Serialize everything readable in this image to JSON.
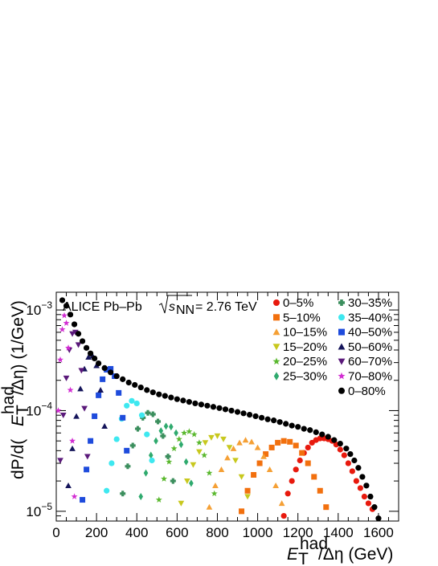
{
  "chart_data": {
    "type": "scatter",
    "annotation": {
      "prefix": "ALICE Pb–Pb",
      "sqrt_base": "s",
      "sqrt_sub": "NN",
      "suffix": "= 2.76 TeV"
    },
    "xlabel": {
      "base": "E",
      "sub": "T",
      "sup": "had",
      "rest": "/Δη (GeV)"
    },
    "ylabel": {
      "prefix": "dP/d(",
      "base": "E",
      "sub": "T",
      "sup": "had",
      "rest": "/Δη) (1/GeV)"
    },
    "xlim": [
      0,
      1700
    ],
    "ylim": [
      8e-06,
      0.0015
    ],
    "yscale": "log",
    "x_ticks": [
      "0",
      "200",
      "400",
      "600",
      "800",
      "1000",
      "1200",
      "1400",
      "1600"
    ],
    "y_ticks": [
      {
        "base": "10",
        "exp": "−3"
      },
      {
        "base": "10",
        "exp": "−4"
      },
      {
        "base": "10",
        "exp": "−5"
      }
    ],
    "legend_position": "top-right",
    "series": [
      {
        "name": "0–5%",
        "color": "#e8190d",
        "marker": "circle",
        "x": [
          1130,
          1150,
          1170,
          1190,
          1210,
          1230,
          1250,
          1270,
          1290,
          1310,
          1330,
          1350,
          1370,
          1390,
          1410,
          1430,
          1450,
          1470,
          1490,
          1510,
          1530,
          1550,
          1570
        ],
        "y": [
          9e-06,
          1.5e-05,
          2e-05,
          2.6e-05,
          3.2e-05,
          3.8e-05,
          4.3e-05,
          4.8e-05,
          5.1e-05,
          5.3e-05,
          5.3e-05,
          5.2e-05,
          5e-05,
          4.6e-05,
          4.1e-05,
          3.6e-05,
          3e-05,
          2.5e-05,
          2e-05,
          1.7e-05,
          1.4e-05,
          1.2e-05,
          1.05e-05
        ]
      },
      {
        "name": "5–10%",
        "color": "#f2700e",
        "marker": "square",
        "x": [
          920,
          950,
          980,
          1010,
          1040,
          1070,
          1100,
          1130,
          1160,
          1190,
          1220,
          1250,
          1280,
          1310,
          1340
        ],
        "y": [
          1e-05,
          1.6e-05,
          2.3e-05,
          3e-05,
          3.7e-05,
          4.3e-05,
          4.8e-05,
          5e-05,
          4.9e-05,
          4.5e-05,
          3.8e-05,
          3e-05,
          2.2e-05,
          1.6e-05,
          1.1e-05
        ]
      },
      {
        "name": "10–15%",
        "color": "#f5a035",
        "marker": "triangle-up",
        "x": [
          760,
          790,
          820,
          850,
          880,
          910,
          940,
          970,
          1000,
          1030,
          1060,
          1090,
          1120
        ],
        "y": [
          1.1e-05,
          1.8e-05,
          2.6e-05,
          3.4e-05,
          4.2e-05,
          4.8e-05,
          5.1e-05,
          4.9e-05,
          4.3e-05,
          3.5e-05,
          2.6e-05,
          1.8e-05,
          1.2e-05
        ]
      },
      {
        "name": "15–20%",
        "color": "#c8c81e",
        "marker": "triangle-down",
        "x": [
          620,
          650,
          680,
          710,
          740,
          770,
          800,
          830,
          860,
          890,
          920,
          950
        ],
        "y": [
          1.2e-05,
          2e-05,
          2.9e-05,
          3.9e-05,
          4.8e-05,
          5.4e-05,
          5.6e-05,
          5.2e-05,
          4.3e-05,
          3.2e-05,
          2.2e-05,
          1.4e-05
        ]
      },
      {
        "name": "20–25%",
        "color": "#5ab82e",
        "marker": "star",
        "x": [
          510,
          535,
          560,
          585,
          610,
          635,
          660,
          685,
          710,
          735,
          760,
          785
        ],
        "y": [
          1.3e-05,
          2.1e-05,
          3.1e-05,
          4.2e-05,
          5.2e-05,
          6e-05,
          6.2e-05,
          5.8e-05,
          4.8e-05,
          3.6e-05,
          2.4e-05,
          1.5e-05
        ]
      },
      {
        "name": "25–30%",
        "color": "#2faa6e",
        "marker": "diamond",
        "x": [
          420,
          445,
          470,
          495,
          520,
          545,
          570,
          595,
          620,
          645,
          670
        ],
        "y": [
          1.4e-05,
          2.4e-05,
          3.6e-05,
          5e-05,
          6.3e-05,
          7e-05,
          6.9e-05,
          6e-05,
          4.6e-05,
          3.1e-05,
          1.9e-05
        ]
      },
      {
        "name": "30–35%",
        "color": "#3c8f5e",
        "marker": "cross",
        "x": [
          330,
          355,
          380,
          405,
          430,
          455,
          480,
          505,
          530,
          555,
          580
        ],
        "y": [
          1.5e-05,
          2.8e-05,
          4.5e-05,
          6.6e-05,
          8.5e-05,
          9.5e-05,
          9.2e-05,
          7.8e-05,
          5.6e-05,
          3.5e-05,
          2e-05
        ]
      },
      {
        "name": "35–40%",
        "color": "#3ee8f0",
        "marker": "circle",
        "x": [
          250,
          275,
          300,
          325,
          350,
          375,
          400,
          425,
          450,
          475
        ],
        "y": [
          1.6e-05,
          3e-05,
          5.2e-05,
          8.3e-05,
          0.000112,
          0.000125,
          0.000118,
          9e-05,
          5.8e-05,
          3.2e-05
        ]
      },
      {
        "name": "40–50%",
        "color": "#1e4bdc",
        "marker": "square",
        "x": [
          130,
          150,
          170,
          190,
          210,
          230,
          250,
          270,
          290,
          310,
          330,
          350
        ],
        "y": [
          1.3e-05,
          2.6e-05,
          5e-05,
          8.8e-05,
          0.000142,
          0.000205,
          0.000255,
          0.00026,
          0.00022,
          0.00015,
          8.5e-05,
          4e-05
        ]
      },
      {
        "name": "50–60%",
        "color": "#14145a",
        "marker": "triangle-up",
        "x": [
          60,
          80,
          100,
          120,
          140,
          160,
          180,
          200,
          220,
          240
        ],
        "y": [
          1.8e-05,
          4.2e-05,
          8.8e-05,
          0.000165,
          0.00026,
          0.00034,
          0.00035,
          0.00028,
          0.00016,
          7e-05
        ]
      },
      {
        "name": "60–70%",
        "color": "#5a197a",
        "marker": "triangle-down",
        "x": [
          20,
          35,
          50,
          65,
          80,
          95,
          110,
          125,
          140,
          155
        ],
        "y": [
          3.2e-05,
          9e-05,
          0.00021,
          0.0004,
          0.00058,
          0.0006,
          0.00045,
          0.00025,
          0.000105,
          3.5e-05
        ]
      },
      {
        "name": "70–80%",
        "color": "#d22dd2",
        "marker": "star",
        "x": [
          10,
          20,
          30,
          40,
          50,
          60,
          70,
          80,
          90
        ],
        "y": [
          0.0001,
          0.00032,
          0.00064,
          0.00088,
          0.00074,
          0.00042,
          0.00016,
          5e-05,
          1.4e-05
        ]
      },
      {
        "name": "0–80%",
        "color": "#000000",
        "marker": "circle",
        "x": [
          30,
          50,
          70,
          90,
          110,
          130,
          150,
          170,
          190,
          210,
          240,
          270,
          300,
          330,
          360,
          390,
          420,
          450,
          480,
          510,
          540,
          570,
          600,
          630,
          660,
          690,
          720,
          750,
          780,
          810,
          840,
          870,
          900,
          930,
          960,
          990,
          1020,
          1050,
          1080,
          1110,
          1140,
          1170,
          1200,
          1230,
          1260,
          1290,
          1320,
          1350,
          1380,
          1410,
          1440,
          1460,
          1480,
          1500,
          1520,
          1540,
          1560,
          1580,
          1600
        ],
        "y": [
          0.00125,
          0.0011,
          0.0009,
          0.00072,
          0.00058,
          0.00049,
          0.00042,
          0.00037,
          0.00033,
          0.000295,
          0.000265,
          0.00024,
          0.00022,
          0.000205,
          0.00019,
          0.00018,
          0.00017,
          0.00016,
          0.000152,
          0.000145,
          0.00014,
          0.000135,
          0.00013,
          0.000126,
          0.000122,
          0.000118,
          0.000115,
          0.000112,
          0.000109,
          0.000106,
          0.000103,
          0.0001,
          9.7e-05,
          9.4e-05,
          9.1e-05,
          8.8e-05,
          8.5e-05,
          8.2e-05,
          8e-05,
          7.7e-05,
          7.4e-05,
          7.1e-05,
          6.9e-05,
          6.6e-05,
          6.4e-05,
          6.1e-05,
          5.8e-05,
          5.5e-05,
          5.1e-05,
          4.7e-05,
          4.2e-05,
          3.7e-05,
          3.2e-05,
          2.7e-05,
          2.2e-05,
          1.8e-05,
          1.4e-05,
          1.1e-05,
          8.5e-06
        ]
      }
    ]
  }
}
